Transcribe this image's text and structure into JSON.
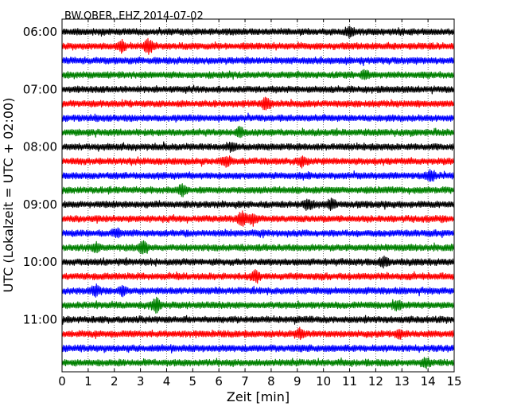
{
  "chart_data": {
    "type": "line",
    "title": "BW.OBER..EHZ 2014-07-02",
    "xlabel": "Zeit  [min]",
    "ylabel": "UTC (Lokalzeit = UTC + 02:00)",
    "xlim": [
      0,
      15
    ],
    "x_ticks": [
      "0",
      "1",
      "2",
      "3",
      "4",
      "5",
      "6",
      "7",
      "8",
      "9",
      "10",
      "11",
      "12",
      "13",
      "14",
      "15"
    ],
    "y_tick_labels": [
      "06:00",
      "07:00",
      "08:00",
      "09:00",
      "10:00",
      "11:00"
    ],
    "grid": "vertical dotted at each minute",
    "colors": [
      "#000000",
      "#ff0000",
      "#0000ff",
      "#008000"
    ],
    "series": [
      {
        "start": "06:00",
        "color": "#000000",
        "events": [
          [
            11,
            0.55
          ]
        ]
      },
      {
        "start": "06:15",
        "color": "#ff0000",
        "events": [
          [
            3.3,
            0.75
          ],
          [
            2.3,
            0.5
          ]
        ]
      },
      {
        "start": "06:30",
        "color": "#0000ff",
        "events": []
      },
      {
        "start": "06:45",
        "color": "#008000",
        "events": [
          [
            11.6,
            0.4
          ]
        ]
      },
      {
        "start": "07:00",
        "color": "#000000",
        "events": []
      },
      {
        "start": "07:15",
        "color": "#ff0000",
        "events": [
          [
            7.8,
            0.75
          ]
        ]
      },
      {
        "start": "07:30",
        "color": "#0000ff",
        "events": []
      },
      {
        "start": "07:45",
        "color": "#008000",
        "events": [
          [
            6.8,
            0.5
          ]
        ]
      },
      {
        "start": "08:00",
        "color": "#000000",
        "events": [
          [
            6.5,
            0.4
          ]
        ]
      },
      {
        "start": "08:15",
        "color": "#ff0000",
        "events": [
          [
            9.2,
            0.5
          ],
          [
            6.3,
            0.5
          ]
        ]
      },
      {
        "start": "08:30",
        "color": "#0000ff",
        "events": [
          [
            14.1,
            0.5
          ]
        ]
      },
      {
        "start": "08:45",
        "color": "#008000",
        "events": [
          [
            4.6,
            0.55
          ]
        ]
      },
      {
        "start": "09:00",
        "color": "#000000",
        "events": [
          [
            9.4,
            0.55
          ],
          [
            10.3,
            0.45
          ]
        ]
      },
      {
        "start": "09:15",
        "color": "#ff0000",
        "events": [
          [
            6.9,
            0.8
          ],
          [
            7.3,
            0.6
          ]
        ]
      },
      {
        "start": "09:30",
        "color": "#0000ff",
        "events": [
          [
            2.1,
            0.4
          ]
        ]
      },
      {
        "start": "09:45",
        "color": "#008000",
        "events": [
          [
            3.1,
            0.75
          ],
          [
            1.3,
            0.4
          ]
        ]
      },
      {
        "start": "10:00",
        "color": "#000000",
        "events": [
          [
            12.3,
            0.5
          ]
        ]
      },
      {
        "start": "10:15",
        "color": "#ff0000",
        "events": [
          [
            7.4,
            0.55
          ]
        ]
      },
      {
        "start": "10:30",
        "color": "#0000ff",
        "events": [
          [
            1.3,
            0.55
          ],
          [
            2.3,
            0.45
          ]
        ]
      },
      {
        "start": "10:45",
        "color": "#008000",
        "events": [
          [
            3.6,
            0.75
          ],
          [
            12.8,
            0.5
          ]
        ]
      },
      {
        "start": "11:00",
        "color": "#000000",
        "events": []
      },
      {
        "start": "11:15",
        "color": "#ff0000",
        "events": [
          [
            9.1,
            0.5
          ],
          [
            12.9,
            0.4
          ]
        ]
      },
      {
        "start": "11:30",
        "color": "#0000ff",
        "events": []
      },
      {
        "start": "11:45",
        "color": "#008000",
        "events": [
          [
            13.9,
            0.45
          ]
        ]
      }
    ]
  }
}
